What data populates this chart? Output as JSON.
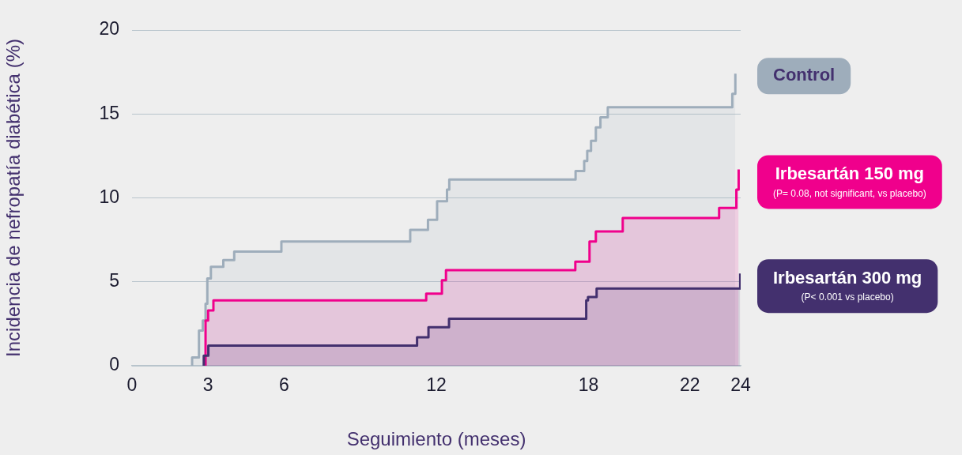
{
  "chart_data": {
    "type": "step",
    "xlabel": "Seguimiento (meses)",
    "ylabel": "Incidencia de nefropatía diabética (%)",
    "xlim": [
      0,
      24
    ],
    "xticks": [
      0,
      3,
      6,
      12,
      18,
      22,
      24
    ],
    "ylim": [
      0,
      20
    ],
    "yticks": [
      0,
      5,
      10,
      15,
      20
    ],
    "grid": "y",
    "legend": "right",
    "series": [
      {
        "name": "Control",
        "color": "#9eadbb",
        "x": [
          2.37,
          2.37,
          2.64,
          2.79,
          2.9,
          2.97,
          3.11,
          3.6,
          4.03,
          5.89,
          10.97,
          11.67,
          12.03,
          12.42,
          12.51,
          17.49,
          17.83,
          17.95,
          18.1,
          18.29,
          18.47,
          18.76,
          23.67,
          23.79
        ],
        "values": [
          0,
          0.5,
          2.1,
          2.7,
          3.7,
          5.2,
          5.9,
          6.3,
          6.8,
          7.4,
          8.1,
          8.7,
          9.8,
          10.5,
          11.1,
          11.6,
          12.2,
          12.8,
          13.4,
          14.2,
          14.8,
          15.4,
          16.2,
          17.4
        ]
      },
      {
        "name": "Irbesartán 150 mg",
        "color": "#f0008c",
        "x": [
          2.9,
          2.9,
          3.0,
          3.21,
          11.6,
          12.22,
          12.38,
          17.48,
          18.04,
          18.29,
          19.35,
          23.15,
          23.83,
          23.92
        ],
        "values": [
          0,
          2.7,
          3.3,
          3.9,
          4.3,
          5.1,
          5.7,
          6.2,
          7.4,
          8.0,
          8.8,
          9.4,
          10.5,
          11.7
        ]
      },
      {
        "name": "Irbesartán 300 mg",
        "color": "#43306e",
        "x": [
          2.83,
          2.83,
          3.01,
          11.24,
          11.69,
          12.5,
          17.91,
          17.98,
          18.32,
          23.98
        ],
        "values": [
          0,
          0.6,
          1.2,
          1.7,
          2.3,
          2.8,
          3.9,
          4.1,
          4.6,
          5.5
        ]
      }
    ],
    "annotations": [
      "(P= 0.08, not significant, vs placebo)",
      "(P< 0.001 vs placebo)"
    ]
  }
}
